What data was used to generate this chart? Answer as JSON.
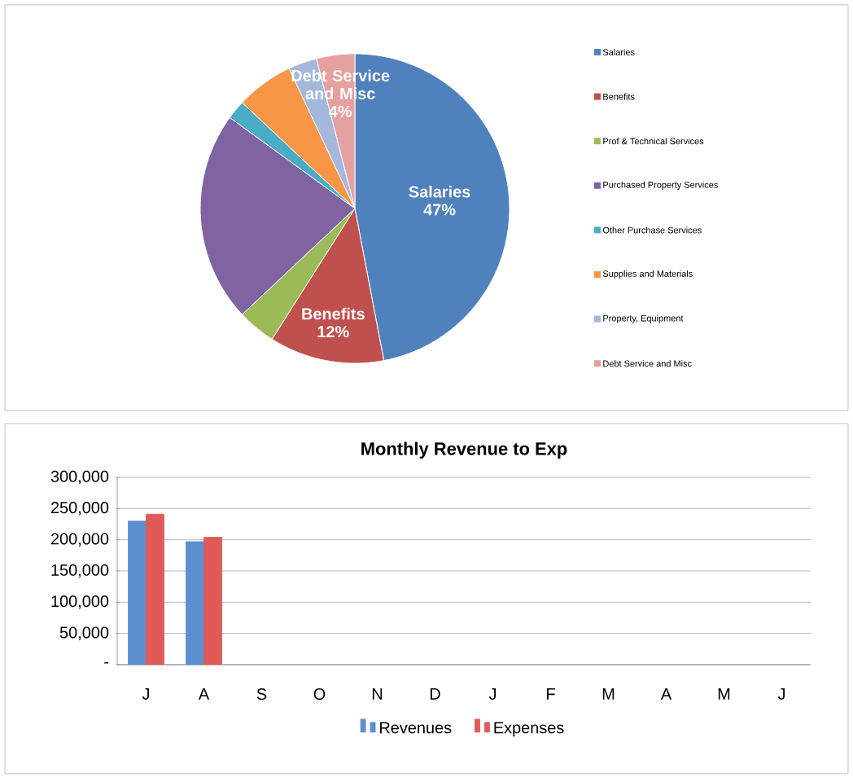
{
  "chart_data": [
    {
      "type": "pie",
      "categories": [
        "Salaries",
        "Benefits",
        "Prof & Technical Services",
        "Purchased Property Services",
        "Other Purchase Services",
        "Supplies and Materials",
        "Property, Equipment",
        "Debt Service and Misc"
      ],
      "values": [
        47,
        12,
        4,
        22,
        2,
        6,
        3,
        4
      ],
      "colors": [
        "#4f81bd",
        "#c0504d",
        "#9bbb59",
        "#8064a2",
        "#4bacc6",
        "#f79646",
        "#a5b8dc",
        "#e6a0a0"
      ],
      "value_labels": [
        "47%",
        "12%",
        null,
        null,
        null,
        null,
        null,
        "4%"
      ],
      "legend": "right"
    },
    {
      "type": "bar",
      "title": "Monthly Revenue to Exp",
      "categories": [
        "J",
        "A",
        "S",
        "O",
        "N",
        "D",
        "J",
        "F",
        "M",
        "A",
        "M",
        "J"
      ],
      "series": [
        {
          "name": "Revenues",
          "color": "#5b8fd0",
          "values": [
            230000,
            197000,
            null,
            null,
            null,
            null,
            null,
            null,
            null,
            null,
            null,
            null
          ]
        },
        {
          "name": "Expenses",
          "color": "#e05a5a",
          "values": [
            241000,
            204000,
            null,
            null,
            null,
            null,
            null,
            null,
            null,
            null,
            null,
            null
          ]
        }
      ],
      "ylim": [
        0,
        300000
      ],
      "yticks": [
        {
          "value": 0,
          "label": "-"
        },
        {
          "value": 50000,
          "label": "50,000"
        },
        {
          "value": 100000,
          "label": "100,000"
        },
        {
          "value": 150000,
          "label": "150,000"
        },
        {
          "value": 200000,
          "label": "200,000"
        },
        {
          "value": 250000,
          "label": "250,000"
        },
        {
          "value": 300000,
          "label": "300,000"
        }
      ],
      "grid": "y",
      "legend": "bottom"
    }
  ]
}
